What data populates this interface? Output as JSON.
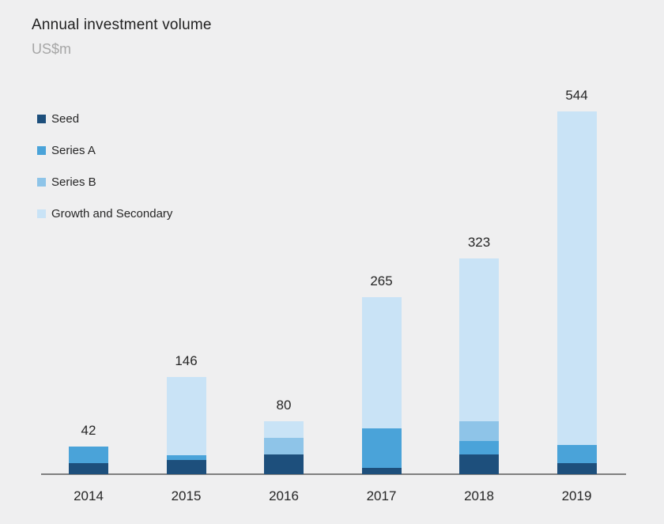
{
  "header": {
    "title": "Annual investment volume",
    "subtitle": "US$m"
  },
  "colors": {
    "background": "#efeff0",
    "axis_line": "#7f7f7f",
    "title_text": "#1f1f1f",
    "subtitle_text": "#a6a6a6",
    "label_text": "#262626",
    "seed": "#1d4f7c",
    "series_a": "#4aa3d9",
    "series_b": "#8ec4e8",
    "growth_and_secondary": "#c9e3f6"
  },
  "legend": {
    "items": [
      {
        "label": "Seed",
        "color": "#1d4f7c"
      },
      {
        "label": "Series A",
        "color": "#4aa3d9"
      },
      {
        "label": "Series B",
        "color": "#8ec4e8"
      },
      {
        "label": "Growth and Secondary",
        "color": "#c9e3f6"
      }
    ]
  },
  "chart_data": {
    "type": "bar",
    "stacked": true,
    "title": "Annual investment volume",
    "xlabel": "",
    "ylabel": "US$m",
    "categories": [
      "2014",
      "2015",
      "2016",
      "2017",
      "2018",
      "2019"
    ],
    "series": [
      {
        "name": "Seed",
        "color": "#1d4f7c",
        "values": [
          17,
          21,
          30,
          10,
          30,
          17
        ]
      },
      {
        "name": "Series A",
        "color": "#4aa3d9",
        "values": [
          25,
          8,
          0,
          59,
          20,
          27
        ]
      },
      {
        "name": "Series B",
        "color": "#8ec4e8",
        "values": [
          0,
          0,
          24,
          0,
          30,
          0
        ]
      },
      {
        "name": "Growth and Secondary",
        "color": "#c9e3f6",
        "values": [
          0,
          117,
          26,
          196,
          243,
          500
        ]
      }
    ],
    "totals": [
      42,
      146,
      80,
      265,
      323,
      544
    ],
    "value_labels_shown": true,
    "gridlines": false,
    "y_axis_shown": false,
    "legend_position": "upper-left"
  }
}
